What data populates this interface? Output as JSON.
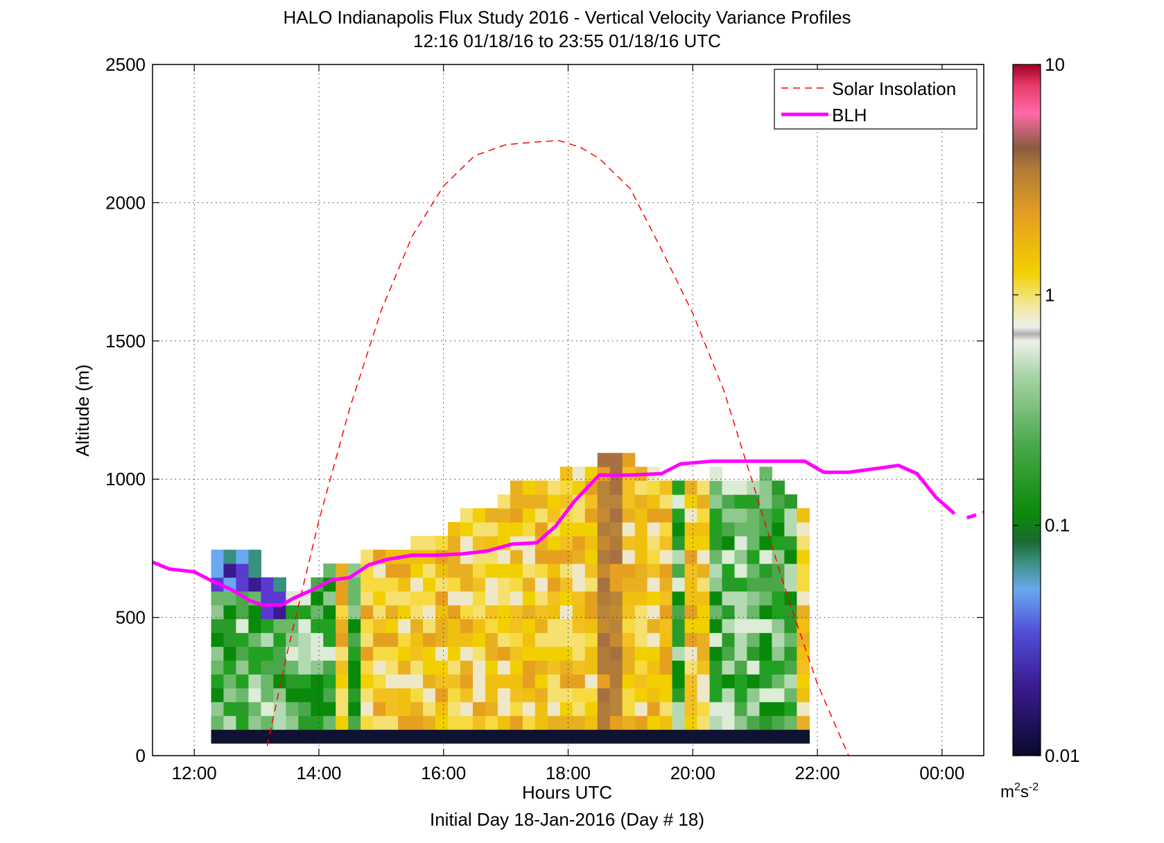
{
  "chart_data": {
    "type": "heatmap",
    "title": "HALO Indianapolis Flux Study 2016 - Vertical Velocity Variance Profiles",
    "subtitle": "12:16 01/18/16 to 23:55 01/18/16  UTC",
    "xlabel": "Hours UTC",
    "xlabel2": "Initial Day 18-Jan-2016 (Day # 18)",
    "ylabel": "Altitude (m)",
    "xlim": [
      11.33,
      24.67
    ],
    "ylim": [
      0,
      2500
    ],
    "x_ticks": [
      12,
      14,
      16,
      18,
      20,
      22,
      24
    ],
    "x_tick_labels": [
      "12:00",
      "14:00",
      "16:00",
      "18:00",
      "20:00",
      "22:00",
      "00:00"
    ],
    "y_ticks": [
      0,
      500,
      1000,
      1500,
      2000,
      2500
    ],
    "y_tick_labels": [
      "0",
      "500",
      "1000",
      "1500",
      "2000",
      "2500"
    ],
    "grid": true,
    "legend_position": "top-right",
    "legend": [
      {
        "label": "Solar Insolation",
        "color": "#ff0000",
        "style": "dashed"
      },
      {
        "label": "BLH",
        "color": "#ff00ff",
        "style": "solid"
      }
    ],
    "colorbar": {
      "scale": "log",
      "min": 0.01,
      "max": 10,
      "tick_labels": [
        "0.01",
        "0.1",
        "1",
        "10"
      ],
      "tick_values": [
        0.01,
        0.1,
        1,
        10
      ],
      "unit_base": "m",
      "unit_sup1": "2",
      "unit_mid": "s",
      "unit_sup2": "-2"
    },
    "heatmap": {
      "x_start": 12.27,
      "x_step": 0.2,
      "y_start": 45,
      "y_step": 50,
      "ground_row_color": "#0f1230",
      "column_heights": [
        14,
        14,
        14,
        14,
        12,
        12,
        11,
        11,
        12,
        13,
        13,
        13,
        14,
        14,
        14,
        14,
        15,
        15,
        15,
        16,
        17,
        17,
        17,
        18,
        19,
        19,
        19,
        19,
        20,
        20,
        20,
        21,
        21,
        21,
        20,
        20,
        19,
        19,
        19,
        19,
        20,
        19,
        19,
        19,
        20,
        19,
        18,
        17
      ],
      "column_kinds": [
        "g",
        "g",
        "g",
        "g",
        "g",
        "g",
        "g",
        "g",
        "g",
        "g",
        "y",
        "g",
        "y",
        "y",
        "y",
        "y",
        "y",
        "y",
        "y",
        "y",
        "y",
        "y",
        "y",
        "y",
        "y",
        "y",
        "y",
        "y",
        "y",
        "y",
        "y",
        "b",
        "b",
        "y",
        "y",
        "y",
        "y",
        "g",
        "y",
        "y",
        "g",
        "g",
        "g",
        "g",
        "g",
        "g",
        "g",
        "y"
      ]
    },
    "series": [
      {
        "name": "Solar Insolation",
        "x": [
          13.17,
          13.5,
          14.0,
          14.5,
          15.0,
          15.5,
          16.0,
          16.5,
          17.0,
          17.5,
          17.85,
          18.2,
          18.5,
          19.0,
          19.5,
          20.0,
          20.5,
          21.0,
          21.5,
          22.0,
          22.5
        ],
        "y": [
          35,
          380,
          850,
          1260,
          1610,
          1880,
          2060,
          2170,
          2210,
          2220,
          2225,
          2200,
          2160,
          2050,
          1830,
          1600,
          1320,
          960,
          590,
          260,
          0
        ]
      },
      {
        "name": "BLH",
        "x": [
          11.33,
          11.6,
          12.0,
          12.3,
          12.6,
          12.9,
          13.1,
          13.4,
          13.6,
          13.9,
          14.2,
          14.5,
          14.8,
          15.1,
          15.5,
          15.9,
          16.3,
          16.7,
          17.1,
          17.5,
          17.8,
          18.1,
          18.5,
          19.0,
          19.5,
          19.8,
          20.3,
          20.8,
          21.3,
          21.8,
          22.1,
          22.5,
          23.0,
          23.3,
          23.6,
          23.9,
          24.2
        ],
        "y": [
          700,
          675,
          665,
          630,
          600,
          560,
          545,
          545,
          570,
          600,
          635,
          645,
          690,
          710,
          725,
          725,
          730,
          740,
          765,
          770,
          830,
          920,
          1015,
          1015,
          1020,
          1055,
          1065,
          1065,
          1065,
          1065,
          1025,
          1025,
          1040,
          1050,
          1020,
          935,
          875
        ]
      },
      {
        "name": "BLH-extension",
        "x": [
          24.4,
          24.67
        ],
        "y": [
          860,
          880
        ]
      }
    ]
  }
}
